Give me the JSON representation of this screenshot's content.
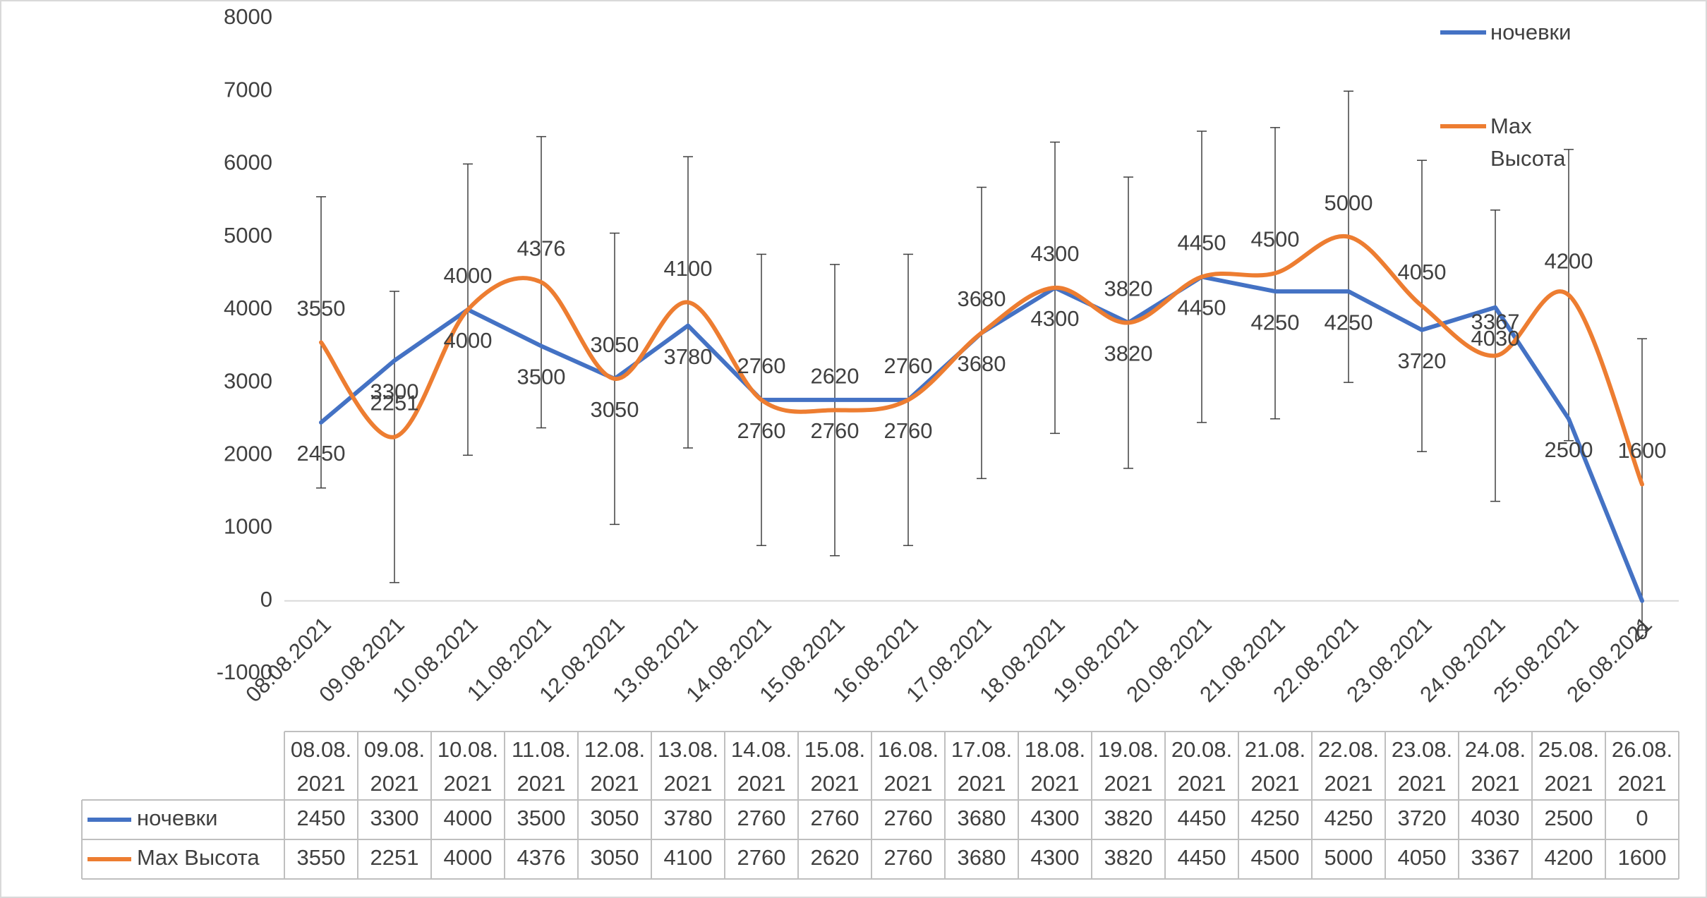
{
  "chart_data": {
    "type": "line",
    "categories": [
      "08.08.2021",
      "09.08.2021",
      "10.08.2021",
      "11.08.2021",
      "12.08.2021",
      "13.08.2021",
      "14.08.2021",
      "15.08.2021",
      "16.08.2021",
      "17.08.2021",
      "18.08.2021",
      "19.08.2021",
      "20.08.2021",
      "21.08.2021",
      "22.08.2021",
      "23.08.2021",
      "24.08.2021",
      "25.08.2021",
      "26.08.2021"
    ],
    "series": [
      {
        "name": "ночевки",
        "color": "#4472c4",
        "smooth": false,
        "values": [
          2450,
          3300,
          4000,
          3500,
          3050,
          3780,
          2760,
          2760,
          2760,
          3680,
          4300,
          3820,
          4450,
          4250,
          4250,
          3720,
          4030,
          2500,
          0
        ]
      },
      {
        "name": "Max Высота",
        "color": "#ed7d31",
        "smooth": true,
        "values": [
          3550,
          2251,
          4000,
          4376,
          3050,
          4100,
          2760,
          2620,
          2760,
          3680,
          4300,
          3820,
          4450,
          4500,
          5000,
          4050,
          3367,
          4200,
          1600
        ],
        "errors": [
          2000,
          2000,
          2000,
          2000,
          2000,
          2000,
          2000,
          2000,
          2000,
          2000,
          2000,
          2000,
          2000,
          2000,
          2000,
          2000,
          2000,
          2000,
          2000
        ]
      }
    ],
    "ylim": [
      -1000,
      8000
    ],
    "yticks": [
      -1000,
      0,
      1000,
      2000,
      3000,
      4000,
      5000,
      6000,
      7000,
      8000
    ],
    "grid": false,
    "legend": "top-right",
    "data_table": true
  }
}
